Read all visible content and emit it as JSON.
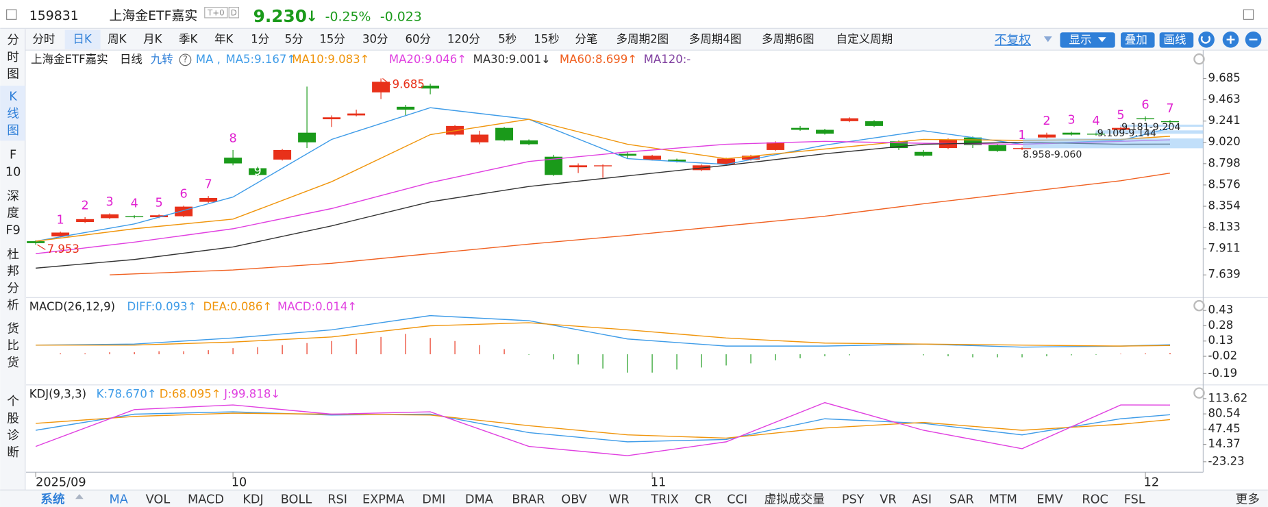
{
  "header": {
    "code": "159831",
    "name": "上海金ETF嘉实",
    "badges": [
      "T+0",
      "D"
    ],
    "price": "9.230",
    "arrow": "↓",
    "change_pct": "-0.25%",
    "change": "-0.023"
  },
  "periods": [
    "分时",
    "日K",
    "周K",
    "月K",
    "季K",
    "年K",
    "1分",
    "5分",
    "15分",
    "30分",
    "60分",
    "120分",
    "5秒",
    "15秒",
    "分笔",
    "多周期2图",
    "多周期4图",
    "多周期6图",
    "自定义周期"
  ],
  "toolbar": [
    "不复权",
    "显示",
    "叠加",
    "画线"
  ],
  "sidebar": [
    [
      "分",
      "时",
      "图"
    ],
    [
      "K",
      "线",
      "图"
    ],
    [
      "F",
      "10"
    ],
    [
      "深",
      "度",
      "F9"
    ],
    [
      "杜",
      "邦",
      "分",
      "析"
    ],
    [
      "货",
      "比",
      "货"
    ],
    [
      "个",
      "股",
      "诊",
      "断"
    ]
  ],
  "legend": {
    "name": "上海金ETF嘉实",
    "period": "日线",
    "jiuzhuan": "九转",
    "help": "?",
    "ma": "MA ,",
    "ma120": "MA120:-"
  },
  "bottom_tabs": [
    "系统",
    "MA",
    "VOL",
    "MACD",
    "KDJ",
    "BOLL",
    "RSI",
    "EXPMA",
    "DMI",
    "DMA",
    "BRAR",
    "OBV",
    "WR",
    "TRIX",
    "CR",
    "CCI",
    "虚拟成交量",
    "PSY",
    "VR",
    "ASI",
    "SAR",
    "MTM",
    "EMV",
    "ROC",
    "FSL",
    "更多"
  ],
  "chart_data": [
    {
      "type": "candlestick",
      "categories": [
        "2025/09",
        null,
        null,
        null,
        null,
        null,
        null,
        null,
        "10",
        null,
        null,
        null,
        null,
        null,
        null,
        null,
        null,
        null,
        null,
        null,
        null,
        null,
        null,
        null,
        null,
        "11",
        null,
        null,
        null,
        null,
        null,
        null,
        null,
        null,
        null,
        null,
        null,
        null,
        null,
        null,
        null,
        null,
        null,
        null,
        null,
        "12",
        null
      ],
      "open": [
        7.99,
        8.04,
        8.19,
        8.23,
        8.25,
        8.24,
        8.25,
        8.4,
        8.86,
        8.75,
        8.84,
        9.12,
        9.26,
        9.3,
        9.54,
        9.39,
        9.61,
        9.1,
        9.02,
        9.17,
        9.04,
        8.87,
        8.76,
        8.77,
        8.9,
        8.84,
        8.84,
        8.73,
        8.79,
        8.84,
        8.94,
        9.17,
        9.15,
        9.24,
        9.24,
        9.03,
        8.92,
        8.96,
        9.07,
        8.99,
        8.95,
        9.07,
        9.12,
        9.11,
        9.15,
        9.27,
        9.24
      ],
      "high": [
        8.0,
        8.09,
        8.24,
        8.28,
        8.26,
        8.27,
        8.36,
        8.46,
        8.94,
        8.77,
        8.95,
        9.6,
        9.3,
        9.36,
        9.685,
        9.41,
        9.63,
        9.2,
        9.14,
        9.18,
        9.05,
        8.89,
        8.8,
        8.79,
        8.92,
        8.89,
        8.85,
        8.79,
        8.86,
        8.89,
        9.03,
        9.19,
        9.16,
        9.28,
        9.25,
        9.04,
        8.94,
        9.06,
        9.08,
        9.0,
        8.97,
        9.12,
        9.13,
        9.12,
        9.18,
        9.29,
        9.25
      ],
      "low": [
        7.953,
        8.03,
        8.18,
        8.22,
        8.23,
        8.23,
        8.24,
        8.39,
        8.78,
        8.67,
        8.83,
        8.96,
        9.18,
        9.29,
        9.47,
        9.3,
        9.52,
        9.09,
        9.0,
        9.03,
        8.99,
        8.67,
        8.7,
        8.65,
        8.85,
        8.83,
        8.81,
        8.72,
        8.78,
        8.83,
        8.93,
        9.14,
        9.1,
        9.23,
        9.18,
        8.94,
        8.87,
        8.95,
        8.96,
        8.92,
        8.94,
        9.06,
        9.09,
        9.09,
        9.14,
        9.24,
        9.21
      ],
      "close": [
        7.97,
        8.08,
        8.22,
        8.27,
        8.24,
        8.26,
        8.35,
        8.44,
        8.8,
        8.68,
        8.94,
        9.02,
        9.28,
        9.32,
        9.65,
        9.36,
        9.58,
        9.19,
        9.1,
        9.04,
        9.0,
        8.68,
        8.78,
        8.78,
        8.88,
        8.88,
        8.82,
        8.78,
        8.85,
        8.88,
        9.02,
        9.15,
        9.11,
        9.27,
        9.19,
        8.96,
        8.88,
        9.05,
        8.99,
        8.93,
        8.96,
        9.1,
        9.1,
        9.1,
        9.17,
        9.26,
        9.23
      ],
      "up_color": "#e8311a",
      "down_color": "#1a9a1a",
      "series": [
        {
          "name": "MA5:9.167↑",
          "color": "#3f9ce8",
          "x": [
            0,
            4,
            8,
            12,
            16,
            20,
            24,
            28,
            32,
            36,
            40,
            44,
            46
          ],
          "values": [
            7.99,
            8.17,
            8.45,
            9.05,
            9.38,
            9.26,
            8.85,
            8.79,
            8.99,
            9.14,
            9.0,
            9.04,
            9.167
          ]
        },
        {
          "name": "MA10:9.083↑",
          "color": "#f0950c",
          "x": [
            0,
            4,
            8,
            12,
            16,
            20,
            24,
            28,
            32,
            36,
            40,
            44,
            46
          ],
          "values": [
            7.99,
            8.12,
            8.22,
            8.61,
            9.1,
            9.26,
            9.0,
            8.85,
            8.95,
            9.05,
            9.04,
            9.05,
            9.083
          ]
        },
        {
          "name": "MA20:9.046↑",
          "color": "#e040e0",
          "x": [
            0,
            4,
            8,
            12,
            16,
            20,
            24,
            28,
            32,
            36,
            40,
            44,
            46
          ],
          "values": [
            7.86,
            7.98,
            8.12,
            8.33,
            8.6,
            8.82,
            8.92,
            9.0,
            9.03,
            9.01,
            9.0,
            9.03,
            9.046
          ]
        },
        {
          "name": "MA30:9.001↓",
          "color": "#333333",
          "x": [
            0,
            4,
            8,
            12,
            16,
            20,
            24,
            28,
            32,
            36,
            40,
            44,
            46
          ],
          "values": [
            7.71,
            7.8,
            7.93,
            8.15,
            8.4,
            8.56,
            8.67,
            8.78,
            8.9,
            9.0,
            9.02,
            9.0,
            9.001
          ]
        },
        {
          "name": "MA60:8.699↑",
          "color": "#f06020",
          "x": [
            3,
            8,
            12,
            16,
            20,
            24,
            28,
            32,
            36,
            40,
            44,
            46
          ],
          "values": [
            7.64,
            7.69,
            7.76,
            7.86,
            7.96,
            8.05,
            8.15,
            8.25,
            8.38,
            8.5,
            8.62,
            8.699
          ]
        }
      ],
      "ma120_color": "#8040a0",
      "annotations": [
        {
          "label": "9.685",
          "value": 9.685
        },
        {
          "label": "7.953",
          "value": 7.953
        }
      ],
      "jiuzhuan": [
        {
          "label": "1",
          "index": 1
        },
        {
          "label": "2",
          "index": 2
        },
        {
          "label": "3",
          "index": 3
        },
        {
          "label": "4",
          "index": 4
        },
        {
          "label": "5",
          "index": 5
        },
        {
          "label": "6",
          "index": 6
        },
        {
          "label": "7",
          "index": 7
        },
        {
          "label": "8",
          "index": 8
        },
        {
          "label": "9",
          "index": 9
        },
        {
          "label": "1",
          "index": 40
        },
        {
          "label": "2",
          "index": 41
        },
        {
          "label": "3",
          "index": 42
        },
        {
          "label": "4",
          "index": 43
        },
        {
          "label": "5",
          "index": 44
        },
        {
          "label": "6",
          "index": 45
        },
        {
          "label": "7",
          "index": 46
        }
      ],
      "ranges": [
        {
          "label": "9.181-9.204",
          "low": 9.181,
          "high": 9.204
        },
        {
          "label": "9.109-9.144",
          "low": 9.109,
          "high": 9.144
        },
        {
          "label": "8.958-9.060",
          "low": 8.958,
          "high": 9.06
        }
      ],
      "ylim": [
        7.42,
        9.946
      ],
      "yticks": [
        9.685,
        9.463,
        9.241,
        {
          "value": 9.02,
          "label": "9.020"
        },
        8.798,
        8.576,
        8.354,
        8.133,
        7.911,
        7.639
      ]
    },
    {
      "type": "macd",
      "title": "MACD(26,12,9)",
      "histogram": {
        "name": "MACD:0.014↑",
        "up_color": "#e8311a",
        "down_color": "#1a9a1a",
        "values": [
          0,
          0.01,
          0.01,
          0.02,
          0.02,
          0.03,
          0.03,
          0.04,
          0.06,
          0.07,
          0.09,
          0.11,
          0.13,
          0.15,
          0.17,
          0.2,
          0.16,
          0.13,
          0.09,
          0.05,
          -0.005,
          -0.05,
          -0.1,
          -0.14,
          -0.18,
          -0.18,
          -0.15,
          -0.13,
          -0.11,
          -0.09,
          -0.06,
          -0.04,
          -0.02,
          -0.01,
          0,
          0,
          -0.01,
          -0.02,
          -0.03,
          -0.03,
          -0.03,
          -0.02,
          -0.01,
          -0.005,
          0.005,
          0.01,
          0.014
        ]
      },
      "series": [
        {
          "name": "DIFF:0.093↑",
          "color": "#3f9ce8",
          "x": [
            0,
            4,
            8,
            12,
            16,
            20,
            24,
            28,
            32,
            36,
            40,
            44,
            46
          ],
          "values": [
            0.09,
            0.1,
            0.16,
            0.24,
            0.38,
            0.33,
            0.15,
            0.08,
            0.08,
            0.1,
            0.07,
            0.08,
            0.093
          ]
        },
        {
          "name": "DEA:0.086↑",
          "color": "#f0950c",
          "x": [
            0,
            4,
            8,
            12,
            16,
            20,
            24,
            28,
            32,
            36,
            40,
            44,
            46
          ],
          "values": [
            0.09,
            0.09,
            0.12,
            0.17,
            0.28,
            0.31,
            0.24,
            0.16,
            0.11,
            0.1,
            0.09,
            0.08,
            0.086
          ]
        }
      ],
      "ylim": [
        -0.285,
        0.525
      ],
      "yticks": [
        0.43,
        0.28,
        0.13,
        -0.02,
        -0.19
      ]
    },
    {
      "type": "kdj",
      "title": "KDJ(9,3,3)",
      "series": [
        {
          "name": "K:78.670↑",
          "color": "#3f9ce8",
          "x": [
            0,
            4,
            8,
            12,
            16,
            20,
            24,
            28,
            32,
            36,
            40,
            44,
            46
          ],
          "values": [
            45,
            80,
            85,
            78,
            80,
            40,
            20,
            25,
            70,
            60,
            35,
            70,
            78.67
          ]
        },
        {
          "name": "D:68.095↑",
          "color": "#f0950c",
          "x": [
            0,
            4,
            8,
            12,
            16,
            20,
            24,
            28,
            32,
            36,
            40,
            44,
            46
          ],
          "values": [
            60,
            75,
            82,
            80,
            78,
            55,
            35,
            28,
            50,
            62,
            45,
            58,
            68.095
          ]
        },
        {
          "name": "J:99.818↓",
          "color": "#e040e0",
          "x": [
            0,
            4,
            8,
            12,
            16,
            20,
            24,
            28,
            32,
            36,
            40,
            44,
            46
          ],
          "values": [
            10,
            90,
            100,
            80,
            85,
            10,
            -10,
            20,
            105,
            45,
            5,
            100,
            99.818
          ]
        }
      ],
      "ylim": [
        -42.53,
        136.43
      ],
      "yticks": [
        113.62,
        80.54,
        47.45,
        14.37,
        -23.23
      ]
    }
  ]
}
